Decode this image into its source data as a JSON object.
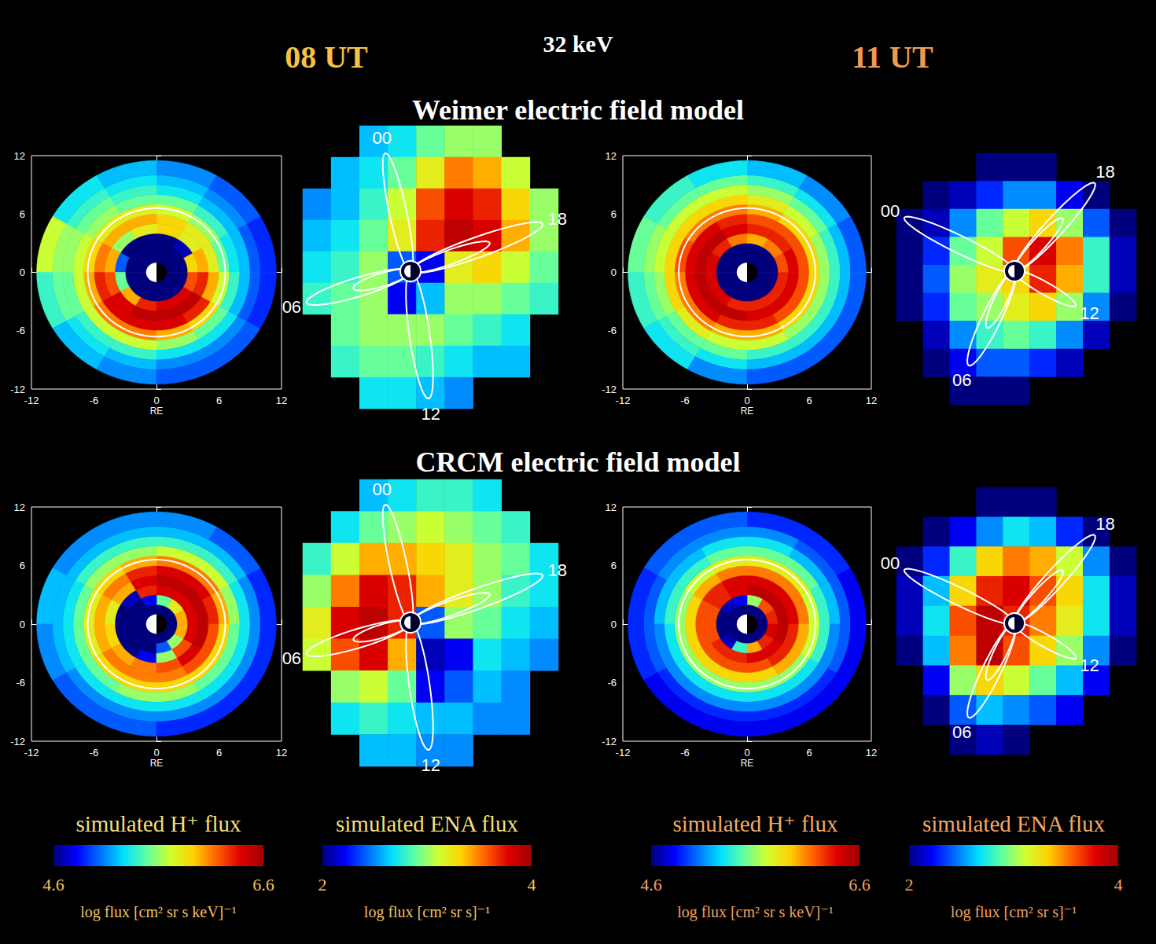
{
  "figure": {
    "times": [
      "08 UT",
      "11 UT"
    ],
    "energy": "32 keV",
    "row_titles": [
      "Weimer electric field model",
      "CRCM electric field model"
    ],
    "colorbars": [
      {
        "label": "simulated H⁺ flux",
        "range": [
          4.6,
          6.6
        ],
        "units": "log flux [cm² sr s keV]⁻¹"
      },
      {
        "label": "simulated ENA flux",
        "range": [
          2,
          4
        ],
        "units": "log flux [cm² sr s]⁻¹"
      },
      {
        "label": "simulated H⁺ flux",
        "range": [
          4.6,
          6.6
        ],
        "units": "log flux [cm² sr s keV]⁻¹"
      },
      {
        "label": "simulated ENA flux",
        "range": [
          2,
          4
        ],
        "units": "log flux [cm² sr s]⁻¹"
      }
    ]
  },
  "chart_data": [
    {
      "type": "polar_heatmap",
      "xlim": [
        -12,
        12
      ],
      "xticks": [
        -12,
        -6,
        0,
        6,
        12
      ],
      "ylim": [
        -12,
        12
      ],
      "yticks": [
        -12,
        -6,
        0,
        6,
        12
      ],
      "x_label": "RE",
      "color_range": [
        4.6,
        6.6
      ],
      "orbit_radius": 6.6,
      "earth_radius": 1,
      "radius_edges": [
        1,
        2,
        3,
        4,
        5,
        6,
        7,
        8,
        9,
        10,
        11.5
      ],
      "angle_edges": [
        0,
        30,
        60,
        90,
        120,
        150,
        180,
        210,
        240,
        270,
        300,
        330,
        360
      ],
      "cells": [
        [
          4.6,
          4.6,
          4.6,
          4.6,
          4.6,
          4.6,
          4.6,
          4.6,
          4.6,
          4.6,
          4.6,
          4.6
        ],
        [
          4.6,
          4.6,
          4.6,
          4.6,
          4.6,
          4.6,
          4.6,
          4.6,
          4.6,
          4.6,
          4.6,
          4.6
        ],
        [
          5.9,
          4.7,
          4.6,
          4.6,
          4.6,
          5.0,
          5.5,
          6.0,
          6.3,
          6.4,
          6.4,
          6.2
        ],
        [
          6.0,
          5.8,
          5.9,
          5.8,
          5.6,
          6.0,
          6.2,
          6.4,
          6.5,
          6.5,
          6.5,
          6.3
        ],
        [
          5.8,
          5.8,
          5.9,
          6.0,
          6.0,
          6.1,
          6.3,
          6.4,
          6.4,
          6.4,
          6.3,
          6.0
        ],
        [
          5.5,
          5.6,
          5.7,
          5.8,
          5.8,
          5.9,
          6.0,
          6.1,
          6.1,
          6.0,
          5.9,
          5.7
        ],
        [
          5.3,
          5.4,
          5.5,
          5.5,
          5.6,
          5.7,
          5.7,
          5.7,
          5.7,
          5.6,
          5.5,
          5.4
        ],
        [
          5.2,
          5.2,
          5.3,
          5.4,
          5.5,
          5.6,
          5.5,
          5.4,
          5.4,
          5.3,
          5.3,
          5.2
        ],
        [
          5.0,
          5.1,
          5.2,
          5.3,
          5.4,
          5.6,
          5.5,
          5.3,
          5.2,
          5.1,
          5.1,
          5.0
        ],
        [
          4.9,
          5.0,
          5.1,
          5.2,
          5.3,
          5.7,
          5.4,
          5.2,
          5.1,
          5.0,
          5.0,
          4.9
        ]
      ]
    },
    {
      "type": "heatmap",
      "tick_labels": false,
      "color_range": [
        2,
        4
      ],
      "field_line_labels": [
        "00",
        "06",
        "12",
        "18"
      ],
      "cells": [
        [
          null,
          null,
          2.6,
          2.7,
          2.9,
          3.0,
          3.0,
          null,
          null
        ],
        [
          null,
          2.6,
          2.7,
          2.9,
          3.2,
          3.5,
          3.4,
          3.1,
          null
        ],
        [
          2.5,
          2.6,
          2.8,
          3.1,
          3.6,
          3.8,
          3.7,
          3.3,
          3.0
        ],
        [
          2.6,
          2.7,
          2.9,
          3.2,
          3.7,
          3.9,
          3.8,
          3.4,
          3.0
        ],
        [
          2.7,
          2.8,
          3.0,
          2.4,
          2.2,
          3.2,
          3.3,
          3.1,
          2.9
        ],
        [
          2.8,
          2.9,
          3.0,
          2.2,
          2.6,
          3.0,
          3.0,
          2.9,
          2.8
        ],
        [
          null,
          2.9,
          3.0,
          3.0,
          3.0,
          2.9,
          2.8,
          2.7,
          null
        ],
        [
          null,
          2.8,
          2.9,
          2.9,
          2.8,
          2.7,
          2.6,
          2.6,
          null
        ],
        [
          null,
          null,
          2.7,
          2.7,
          2.6,
          2.5,
          null,
          null,
          null
        ]
      ]
    },
    {
      "type": "polar_heatmap",
      "xlim": [
        -12,
        12
      ],
      "xticks": [
        -12,
        -6,
        0,
        6,
        12
      ],
      "ylim": [
        -12,
        12
      ],
      "yticks": [
        -12,
        -6,
        0,
        6,
        12
      ],
      "x_label": "RE",
      "color_range": [
        4.6,
        6.6
      ],
      "orbit_radius": 6.6,
      "earth_radius": 1,
      "radius_edges": [
        1,
        2,
        3,
        4,
        5,
        6,
        7,
        8,
        9,
        10,
        11.5
      ],
      "angle_edges": [
        0,
        30,
        60,
        90,
        120,
        150,
        180,
        210,
        240,
        270,
        300,
        330,
        360
      ],
      "cells": [
        [
          4.6,
          4.6,
          4.6,
          4.6,
          4.6,
          4.6,
          4.6,
          4.6,
          4.6,
          4.6,
          4.6,
          4.6
        ],
        [
          4.6,
          4.6,
          4.6,
          4.6,
          4.6,
          4.6,
          4.6,
          4.6,
          4.6,
          4.6,
          4.6,
          4.6
        ],
        [
          6.2,
          6.1,
          6.0,
          6.1,
          6.3,
          6.4,
          6.4,
          6.4,
          6.3,
          6.3,
          6.3,
          6.3
        ],
        [
          6.4,
          6.3,
          6.3,
          6.4,
          6.5,
          6.5,
          6.5,
          6.5,
          6.5,
          6.4,
          6.4,
          6.4
        ],
        [
          6.2,
          6.2,
          6.2,
          6.3,
          6.4,
          6.4,
          6.4,
          6.4,
          6.3,
          6.3,
          6.2,
          6.2
        ],
        [
          5.9,
          5.9,
          6.0,
          6.1,
          6.1,
          6.2,
          6.1,
          6.1,
          6.0,
          6.0,
          5.9,
          5.9
        ],
        [
          5.6,
          5.7,
          5.8,
          5.9,
          5.9,
          5.9,
          5.9,
          5.8,
          5.7,
          5.7,
          5.6,
          5.6
        ],
        [
          5.4,
          5.5,
          5.6,
          5.7,
          5.7,
          5.7,
          5.6,
          5.5,
          5.5,
          5.4,
          5.4,
          5.4
        ],
        [
          5.2,
          5.3,
          5.4,
          5.5,
          5.5,
          5.6,
          5.5,
          5.4,
          5.3,
          5.2,
          5.2,
          5.2
        ],
        [
          5.0,
          5.1,
          5.2,
          5.3,
          5.4,
          5.5,
          5.4,
          5.3,
          5.1,
          5.0,
          5.0,
          5.0
        ]
      ]
    },
    {
      "type": "heatmap",
      "tick_labels": false,
      "color_range": [
        2,
        4
      ],
      "field_line_labels": [
        "00",
        "06",
        "12",
        "18"
      ],
      "cells": [
        [
          null,
          null,
          null,
          2.0,
          2.0,
          2.0,
          null,
          null,
          null
        ],
        [
          null,
          2.0,
          2.1,
          2.3,
          2.5,
          2.5,
          2.2,
          2.0,
          null
        ],
        [
          2.0,
          2.1,
          2.5,
          2.9,
          3.1,
          3.3,
          3.0,
          2.4,
          2.0
        ],
        [
          2.0,
          2.3,
          2.9,
          3.1,
          3.6,
          3.8,
          3.5,
          2.8,
          2.1
        ],
        [
          2.0,
          2.4,
          3.0,
          3.2,
          3.3,
          3.7,
          3.4,
          2.8,
          2.1
        ],
        [
          2.0,
          2.3,
          2.9,
          3.0,
          3.2,
          3.3,
          3.0,
          2.5,
          2.0
        ],
        [
          null,
          2.1,
          2.5,
          2.8,
          2.9,
          2.8,
          2.5,
          2.1,
          null
        ],
        [
          null,
          2.0,
          2.2,
          2.4,
          2.4,
          2.3,
          2.1,
          null,
          null
        ],
        [
          null,
          null,
          2.0,
          2.0,
          2.0,
          null,
          null,
          null,
          null
        ]
      ]
    },
    {
      "type": "polar_heatmap",
      "xlim": [
        -12,
        12
      ],
      "xticks": [
        -12,
        -6,
        0,
        6,
        12
      ],
      "ylim": [
        -12,
        12
      ],
      "yticks": [
        -12,
        -6,
        0,
        6,
        12
      ],
      "x_label": "RE",
      "color_range": [
        4.6,
        6.6
      ],
      "orbit_radius": 6.6,
      "earth_radius": 1,
      "radius_edges": [
        1,
        2,
        3,
        4,
        5,
        6,
        7,
        8,
        9,
        10,
        11.5
      ],
      "angle_edges": [
        0,
        30,
        60,
        90,
        120,
        150,
        180,
        210,
        240,
        270,
        300,
        330,
        360
      ],
      "cells": [
        [
          4.6,
          4.6,
          4.6,
          4.6,
          4.6,
          4.6,
          4.6,
          4.6,
          4.6,
          4.6,
          4.6,
          4.6
        ],
        [
          6.0,
          5.8,
          5.5,
          4.8,
          4.6,
          4.6,
          4.6,
          4.6,
          4.6,
          5.0,
          5.6,
          6.0
        ],
        [
          6.4,
          6.4,
          6.4,
          6.3,
          4.7,
          4.6,
          4.6,
          4.6,
          4.8,
          5.6,
          6.2,
          6.4
        ],
        [
          6.5,
          6.5,
          6.5,
          6.4,
          6.0,
          5.8,
          5.9,
          6.0,
          6.1,
          6.2,
          6.4,
          6.5
        ],
        [
          6.3,
          6.4,
          6.4,
          6.3,
          6.1,
          6.0,
          6.0,
          6.1,
          6.1,
          6.1,
          6.2,
          6.2
        ],
        [
          6.0,
          6.1,
          6.1,
          6.0,
          5.9,
          5.8,
          5.8,
          5.9,
          5.9,
          5.9,
          5.9,
          5.9
        ],
        [
          5.6,
          5.7,
          5.7,
          5.6,
          5.6,
          5.5,
          5.5,
          5.5,
          5.6,
          5.6,
          5.5,
          5.5
        ],
        [
          5.3,
          5.4,
          5.4,
          5.4,
          5.4,
          5.3,
          5.3,
          5.3,
          5.3,
          5.3,
          5.3,
          5.3
        ],
        [
          5.1,
          5.2,
          5.2,
          5.2,
          5.2,
          5.2,
          5.2,
          5.1,
          5.1,
          5.1,
          5.1,
          5.1
        ],
        [
          4.9,
          5.0,
          5.1,
          5.1,
          5.1,
          5.2,
          5.1,
          5.0,
          5.0,
          4.9,
          4.9,
          4.9
        ]
      ]
    },
    {
      "type": "heatmap",
      "tick_labels": false,
      "color_range": [
        2,
        4
      ],
      "field_line_labels": [
        "00",
        "06",
        "12",
        "18"
      ],
      "cells": [
        [
          null,
          null,
          2.6,
          2.7,
          2.8,
          2.8,
          2.7,
          null,
          null
        ],
        [
          null,
          2.7,
          2.9,
          3.0,
          3.1,
          3.0,
          2.9,
          2.8,
          null
        ],
        [
          2.8,
          3.1,
          3.4,
          3.4,
          3.3,
          3.2,
          3.0,
          2.9,
          2.7
        ],
        [
          3.0,
          3.5,
          3.8,
          3.7,
          3.4,
          3.2,
          3.0,
          2.8,
          2.7
        ],
        [
          3.2,
          3.8,
          3.9,
          3.7,
          2.4,
          3.0,
          2.9,
          2.7,
          2.6
        ],
        [
          3.1,
          3.6,
          3.8,
          3.4,
          2.1,
          2.2,
          2.7,
          2.6,
          2.5
        ],
        [
          null,
          3.0,
          3.1,
          2.9,
          2.2,
          2.4,
          2.6,
          2.5,
          null
        ],
        [
          null,
          2.7,
          2.8,
          2.7,
          2.6,
          2.6,
          2.5,
          2.5,
          null
        ],
        [
          null,
          null,
          2.6,
          2.6,
          2.5,
          2.5,
          null,
          null,
          null
        ]
      ]
    },
    {
      "type": "polar_heatmap",
      "xlim": [
        -12,
        12
      ],
      "xticks": [
        -12,
        -6,
        0,
        6,
        12
      ],
      "ylim": [
        -12,
        12
      ],
      "yticks": [
        -12,
        -6,
        0,
        6,
        12
      ],
      "x_label": "RE",
      "color_range": [
        4.6,
        6.6
      ],
      "orbit_radius": 6.6,
      "earth_radius": 1,
      "radius_edges": [
        1,
        2,
        3,
        4,
        5,
        6,
        7,
        8,
        9,
        10,
        11.5
      ],
      "angle_edges": [
        0,
        30,
        60,
        90,
        120,
        150,
        180,
        210,
        240,
        270,
        300,
        330,
        360
      ],
      "cells": [
        [
          4.6,
          4.6,
          4.6,
          4.6,
          4.6,
          4.6,
          4.6,
          4.6,
          4.6,
          4.6,
          4.6,
          4.6
        ],
        [
          6.3,
          6.2,
          5.6,
          4.8,
          4.7,
          4.6,
          4.6,
          4.7,
          5.4,
          6.0,
          6.3,
          6.4
        ],
        [
          6.5,
          6.5,
          6.5,
          6.4,
          6.3,
          6.2,
          6.2,
          6.3,
          6.3,
          6.4,
          6.4,
          6.5
        ],
        [
          6.4,
          6.4,
          6.4,
          6.4,
          6.3,
          6.2,
          6.2,
          6.2,
          6.2,
          6.2,
          6.3,
          6.3
        ],
        [
          6.1,
          6.1,
          6.1,
          6.1,
          6.0,
          5.9,
          5.9,
          5.9,
          5.9,
          5.9,
          6.0,
          6.0
        ],
        [
          5.7,
          5.8,
          5.8,
          5.8,
          5.7,
          5.6,
          5.6,
          5.6,
          5.6,
          5.6,
          5.6,
          5.7
        ],
        [
          5.4,
          5.5,
          5.5,
          5.5,
          5.4,
          5.4,
          5.3,
          5.3,
          5.3,
          5.3,
          5.3,
          5.4
        ],
        [
          5.2,
          5.2,
          5.3,
          5.3,
          5.2,
          5.2,
          5.1,
          5.1,
          5.1,
          5.1,
          5.1,
          5.1
        ],
        [
          5.0,
          5.0,
          5.1,
          5.1,
          5.1,
          5.0,
          5.0,
          4.9,
          4.9,
          4.9,
          4.9,
          5.0
        ],
        [
          4.8,
          4.9,
          4.9,
          5.0,
          5.0,
          4.9,
          4.9,
          4.8,
          4.8,
          4.8,
          4.8,
          4.8
        ]
      ]
    },
    {
      "type": "heatmap",
      "tick_labels": false,
      "color_range": [
        2,
        4
      ],
      "field_line_labels": [
        "00",
        "06",
        "12",
        "18"
      ],
      "cells": [
        [
          null,
          null,
          null,
          2.0,
          2.0,
          2.0,
          null,
          null,
          null
        ],
        [
          null,
          2.0,
          2.2,
          2.5,
          2.7,
          2.6,
          2.3,
          2.0,
          null
        ],
        [
          2.0,
          2.3,
          2.8,
          3.3,
          3.5,
          3.4,
          3.1,
          2.5,
          2.0
        ],
        [
          2.1,
          2.6,
          3.3,
          3.7,
          3.8,
          3.6,
          3.3,
          2.7,
          2.1
        ],
        [
          2.1,
          2.7,
          3.6,
          3.9,
          3.7,
          3.5,
          3.2,
          2.7,
          2.1
        ],
        [
          2.0,
          2.6,
          3.5,
          3.9,
          3.6,
          3.3,
          3.0,
          2.5,
          2.0
        ],
        [
          null,
          2.2,
          3.0,
          3.3,
          3.1,
          2.9,
          2.6,
          2.2,
          null
        ],
        [
          null,
          2.0,
          2.4,
          2.6,
          2.5,
          2.4,
          2.2,
          null,
          null
        ],
        [
          null,
          null,
          2.0,
          2.1,
          2.0,
          null,
          null,
          null,
          null
        ]
      ]
    }
  ]
}
